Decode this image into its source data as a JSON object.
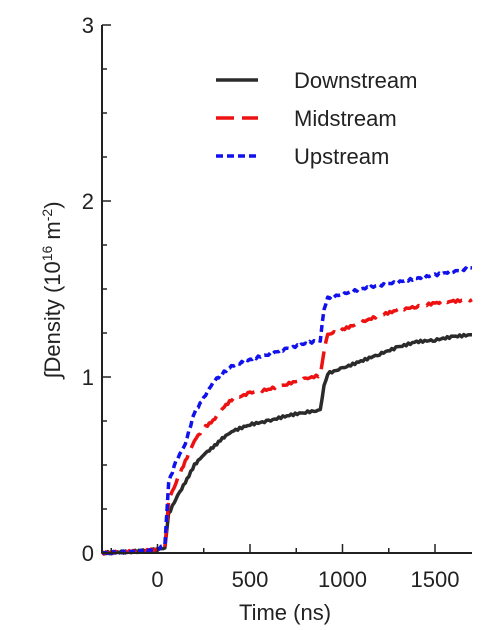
{
  "chart_data": {
    "type": "line",
    "title": "",
    "xlabel": "Time (ns)",
    "ylabel": {
      "prefix": "∫Density (10",
      "exp1": "16",
      "mid": " m",
      "exp2": "-2",
      "suffix": ")"
    },
    "xlim": [
      -300,
      1700
    ],
    "ylim": [
      0,
      3
    ],
    "xticks": [
      0,
      500,
      1000,
      1500
    ],
    "yticks": [
      0,
      1,
      2,
      3
    ],
    "grid": false,
    "legend_position": "top-right",
    "series": [
      {
        "name": "Downstream",
        "color": "#2b2b2b",
        "dash": "solid",
        "x": [
          -300,
          -100,
          0,
          40,
          60,
          100,
          150,
          200,
          250,
          300,
          350,
          400,
          500,
          600,
          700,
          800,
          880,
          900,
          920,
          1000,
          1100,
          1200,
          1300,
          1400,
          1500,
          1600,
          1700
        ],
        "y": [
          0.0,
          0.01,
          0.02,
          0.03,
          0.22,
          0.31,
          0.4,
          0.5,
          0.56,
          0.6,
          0.65,
          0.69,
          0.73,
          0.75,
          0.78,
          0.8,
          0.81,
          0.95,
          1.02,
          1.05,
          1.09,
          1.13,
          1.17,
          1.2,
          1.21,
          1.23,
          1.24
        ]
      },
      {
        "name": "Midstream",
        "color": "#ee1111",
        "dash": "long-dash",
        "x": [
          -300,
          -100,
          0,
          40,
          60,
          100,
          150,
          200,
          250,
          300,
          350,
          400,
          500,
          600,
          700,
          800,
          880,
          900,
          920,
          1000,
          1100,
          1200,
          1300,
          1400,
          1500,
          1600,
          1700
        ],
        "y": [
          0.0,
          0.01,
          0.02,
          0.03,
          0.3,
          0.4,
          0.52,
          0.64,
          0.71,
          0.75,
          0.82,
          0.87,
          0.91,
          0.93,
          0.96,
          0.99,
          1.01,
          1.15,
          1.24,
          1.27,
          1.31,
          1.35,
          1.38,
          1.4,
          1.42,
          1.43,
          1.44
        ]
      },
      {
        "name": "Upstream",
        "color": "#1111ee",
        "dash": "short-dash",
        "x": [
          -300,
          -100,
          0,
          40,
          60,
          100,
          150,
          200,
          250,
          300,
          350,
          400,
          500,
          600,
          700,
          800,
          880,
          900,
          920,
          1000,
          1100,
          1200,
          1300,
          1400,
          1500,
          1600,
          1700
        ],
        "y": [
          0.0,
          0.01,
          0.02,
          0.05,
          0.4,
          0.52,
          0.62,
          0.8,
          0.88,
          0.97,
          1.02,
          1.06,
          1.1,
          1.13,
          1.16,
          1.19,
          1.21,
          1.38,
          1.45,
          1.47,
          1.5,
          1.52,
          1.54,
          1.56,
          1.58,
          1.6,
          1.62
        ]
      }
    ]
  }
}
